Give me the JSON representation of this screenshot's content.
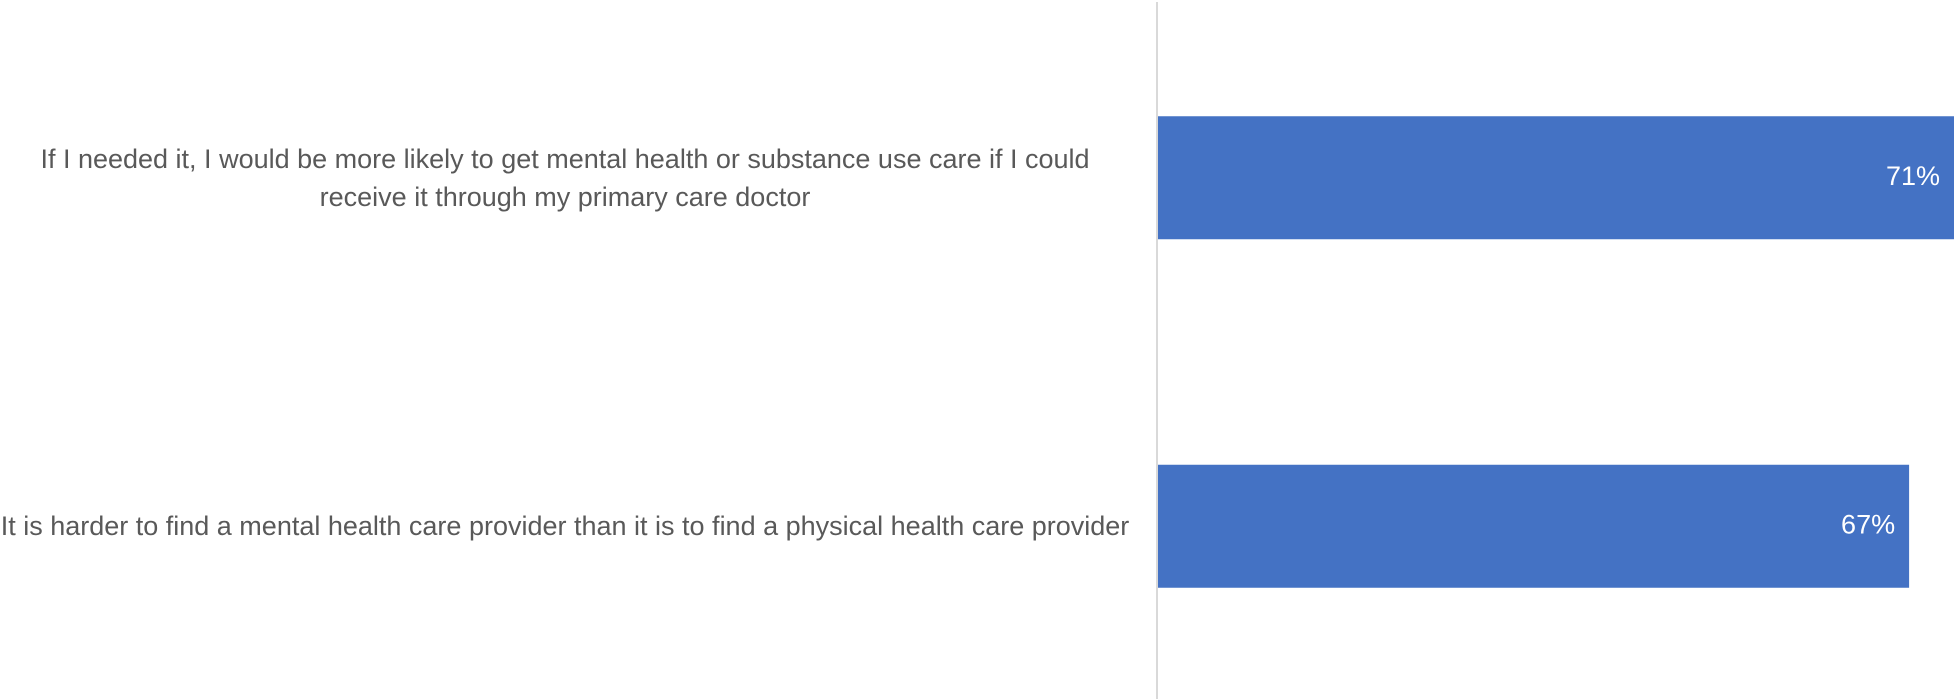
{
  "chart_data": {
    "type": "barh",
    "categories": [
      "If I needed it, I would be more likely to get mental health or substance use care if I could receive it through my primary care doctor",
      "It is harder to find a mental health care provider than it is to find a physical health care provider"
    ],
    "values": [
      71,
      67
    ],
    "value_labels": [
      "71%",
      "67%"
    ],
    "color": "#4472c4",
    "xlim": [
      0,
      71
    ]
  }
}
